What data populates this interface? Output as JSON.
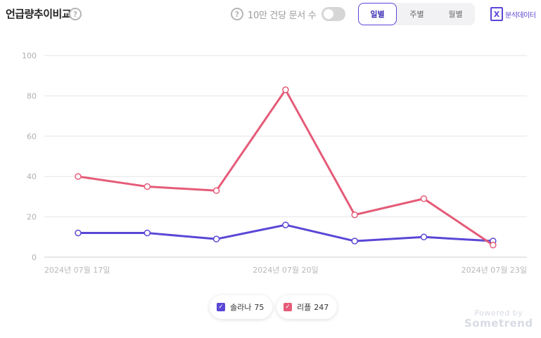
{
  "header": {
    "title": "언급량추이비교",
    "help_glyph": "?",
    "toggle_label": "10만 건당 문서 수",
    "toggle_on": false,
    "period_tabs": [
      {
        "label": "일별",
        "active": true
      },
      {
        "label": "주별",
        "active": false
      },
      {
        "label": "월별",
        "active": false
      }
    ],
    "export_icon": "excel-icon",
    "export_glyph": "X",
    "export_label": "분석데이터"
  },
  "chart_data": {
    "type": "line",
    "x": [
      "2024-07-17",
      "2024-07-18",
      "2024-07-19",
      "2024-07-20",
      "2024-07-21",
      "2024-07-22",
      "2024-07-23"
    ],
    "x_tick_labels": [
      "2024년 07월 17일",
      "2024년 07월 20일",
      "2024년 07월 23일"
    ],
    "x_tick_dates": [
      "2024-07-17",
      "2024-07-20",
      "2024-07-23"
    ],
    "ylim": [
      0,
      100
    ],
    "y_ticks": [
      0,
      20,
      40,
      60,
      80,
      100
    ],
    "grid": true,
    "series": [
      {
        "name": "솔라나",
        "color": "#5a47d6",
        "values": [
          12,
          12,
          9,
          16,
          8,
          10,
          8
        ]
      },
      {
        "name": "리플",
        "color": "#e55b78",
        "values": [
          40,
          35,
          33,
          83,
          21,
          29,
          6
        ]
      }
    ]
  },
  "legend": [
    {
      "name": "솔라나",
      "count": "75",
      "color": "#5a47d6"
    },
    {
      "name": "리플",
      "count": "247",
      "color": "#e55b78"
    }
  ],
  "branding": {
    "powered_by": "Powered by",
    "brand": "Sometrend"
  }
}
